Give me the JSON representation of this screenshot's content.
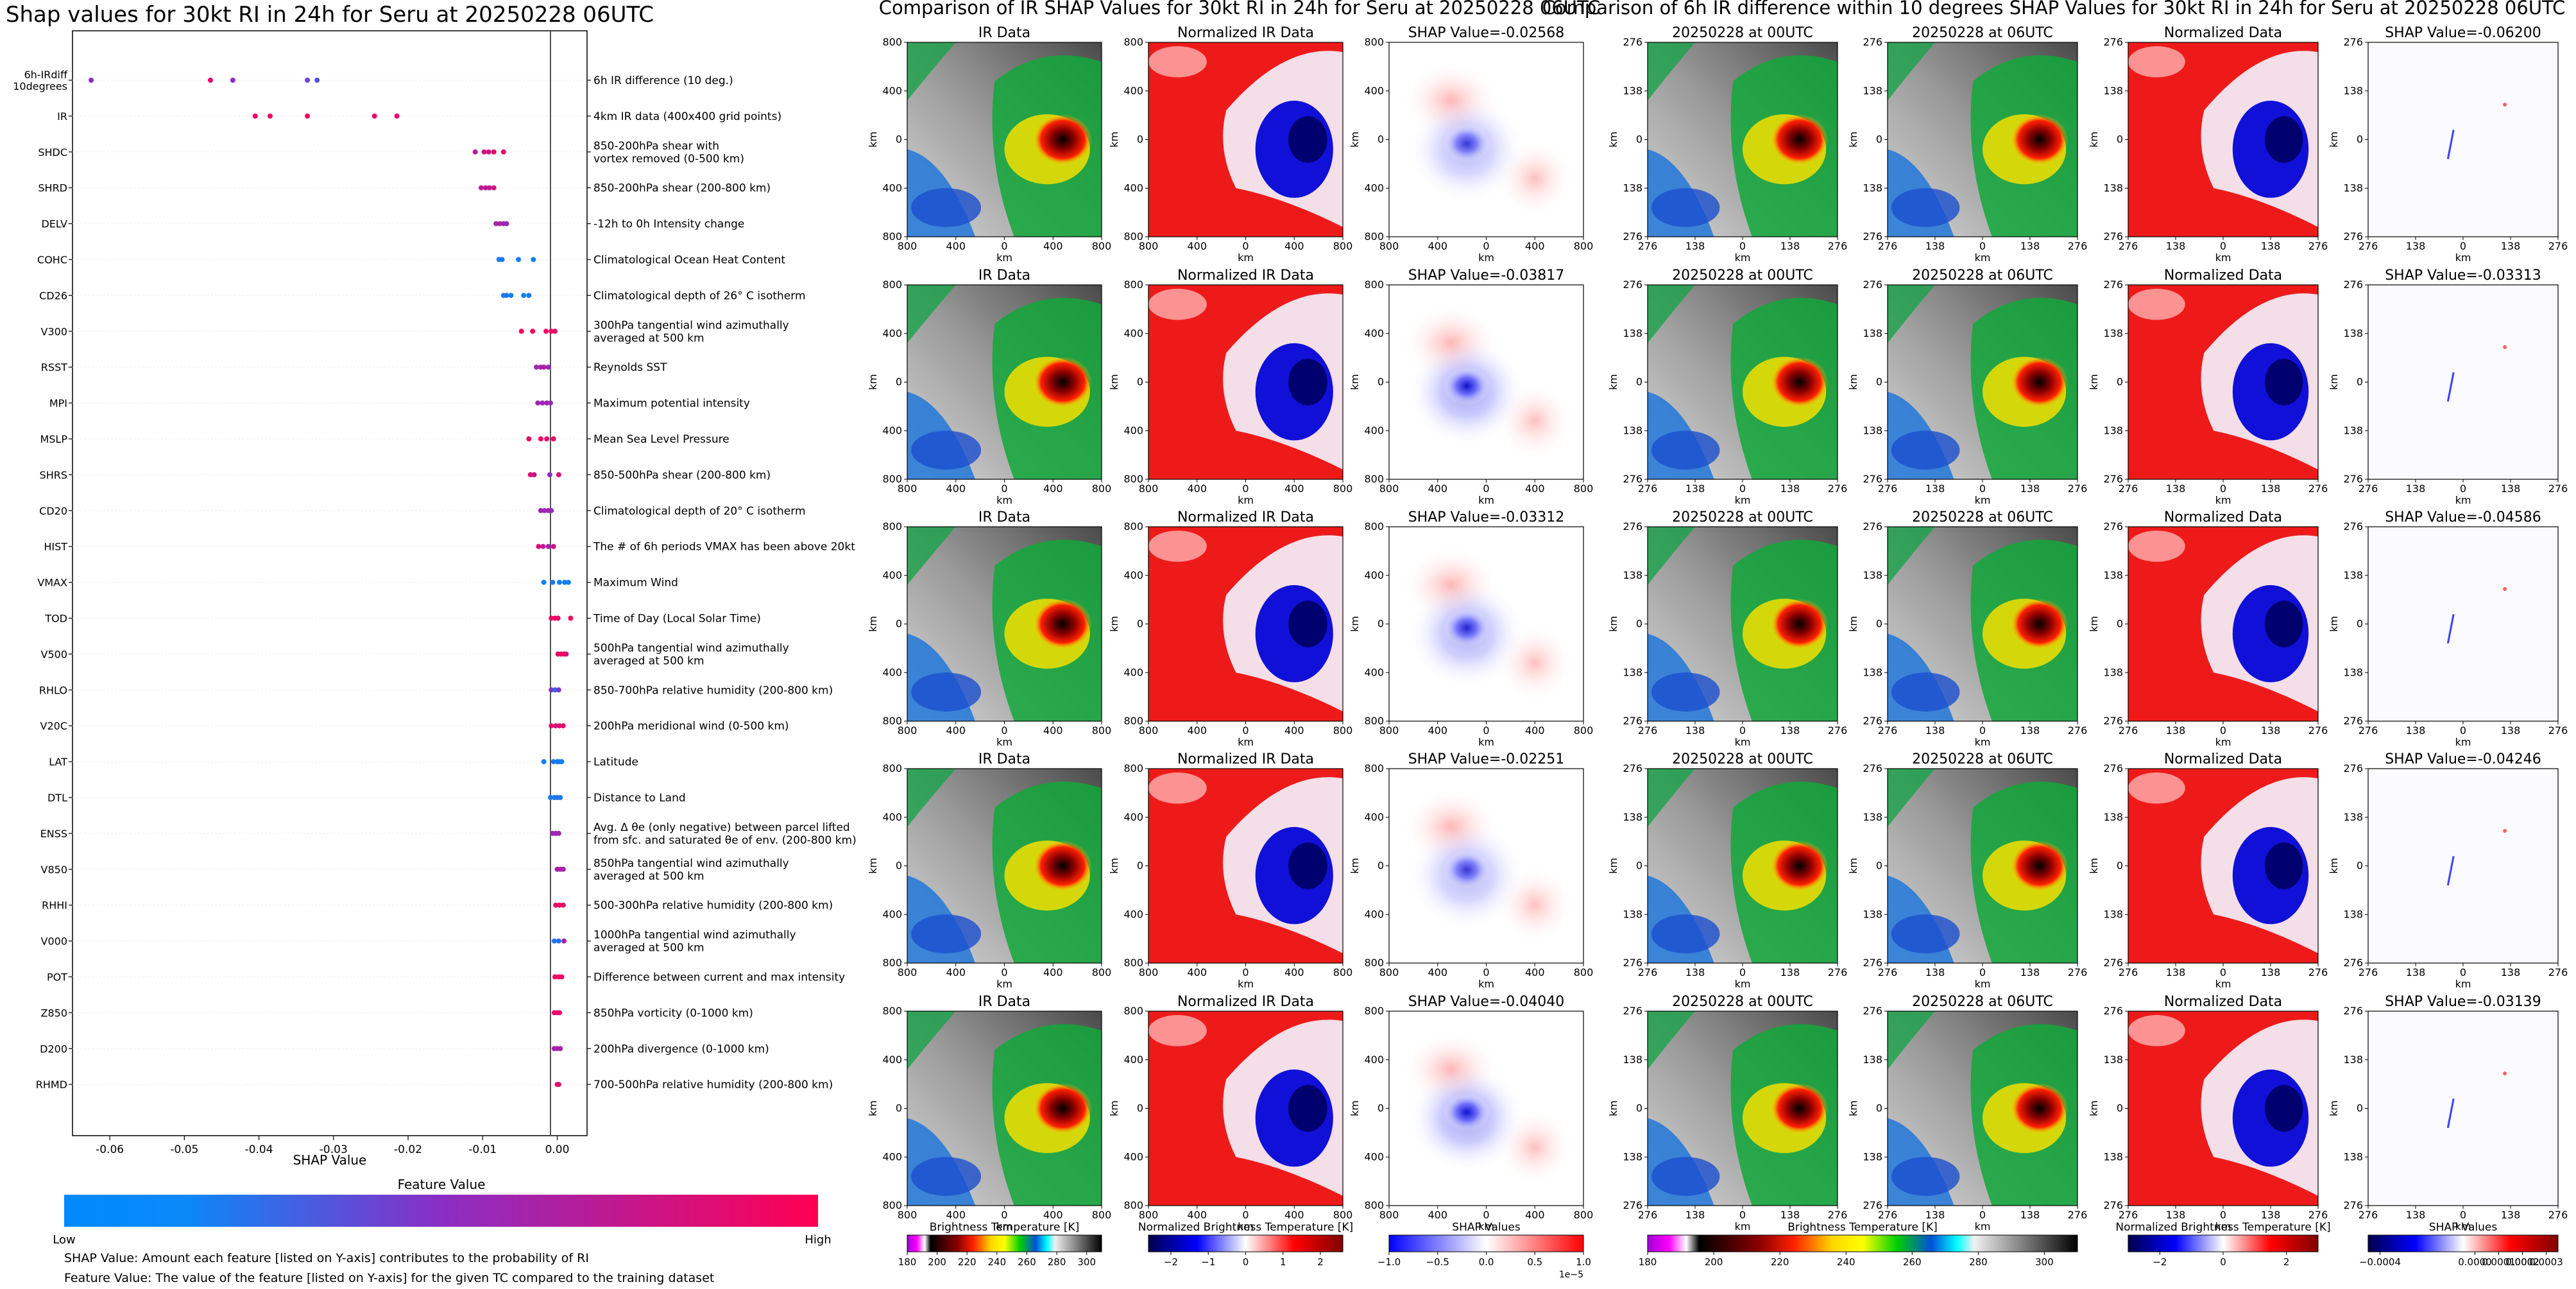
{
  "colors": {
    "low": "#008afd",
    "mid": "#8a2ec4",
    "high": "#ff0052",
    "gray_dark": "#1a1a1a",
    "gray_light": "#c9c9c9"
  },
  "left": {
    "title": "Shap values for 30kt RI in 24h for Seru at 20250228 06UTC",
    "xlabel": "SHAP Value",
    "xticks": [
      "-0.06",
      "-0.05",
      "-0.04",
      "-0.03",
      "-0.02",
      "-0.01",
      "0.00"
    ],
    "colorbar_title": "Feature Value",
    "colorbar_low": "Low",
    "colorbar_high": "High",
    "note1": "SHAP Value: Amount each feature [listed on Y-axis] contributes to the probability of RI",
    "note2": "Feature Value: The value of the feature [listed on Y-axis] for the given TC compared to the training dataset"
  },
  "chart_data": [
    {
      "type": "scatter",
      "title": "Shap values for 30kt RI in 24h for Seru at 20250228 06UTC",
      "xlabel": "SHAP Value",
      "ylabel": "",
      "xlim": [
        -0.065,
        0.004
      ],
      "features": [
        {
          "code": [
            "6h-IRdiff",
            "10degrees"
          ],
          "desc": [
            "6h IR difference (10 deg.)"
          ],
          "points": [
            [
              -0.0625,
              0.5
            ],
            [
              -0.0465,
              0.9
            ],
            [
              -0.0435,
              0.5
            ],
            [
              -0.0335,
              0.4
            ],
            [
              -0.0322,
              0.3
            ]
          ]
        },
        {
          "code": [
            "IR"
          ],
          "desc": [
            "4km IR data (400x400 grid points)"
          ],
          "points": [
            [
              -0.0405,
              0.9
            ],
            [
              -0.0385,
              0.95
            ],
            [
              -0.0335,
              0.95
            ],
            [
              -0.0245,
              0.9
            ],
            [
              -0.0215,
              0.9
            ]
          ]
        },
        {
          "code": [
            "SHDC"
          ],
          "desc": [
            "850-200hPa shear with",
            "vortex removed (0-500 km)"
          ],
          "points": [
            [
              -0.011,
              0.7
            ],
            [
              -0.0098,
              0.8
            ],
            [
              -0.0092,
              0.75
            ],
            [
              -0.0085,
              0.9
            ],
            [
              -0.0072,
              0.9
            ]
          ]
        },
        {
          "code": [
            "SHRD"
          ],
          "desc": [
            "850-200hPa shear (200-800 km)"
          ],
          "points": [
            [
              -0.0102,
              0.7
            ],
            [
              -0.0096,
              0.75
            ],
            [
              -0.0091,
              0.7
            ],
            [
              -0.0085,
              0.8
            ]
          ]
        },
        {
          "code": [
            "DELV"
          ],
          "desc": [
            "-12h to 0h Intensity change"
          ],
          "points": [
            [
              -0.0082,
              0.6
            ],
            [
              -0.0077,
              0.65
            ],
            [
              -0.0072,
              0.6
            ],
            [
              -0.0068,
              0.55
            ]
          ]
        },
        {
          "code": [
            "COHC"
          ],
          "desc": [
            "Climatological Ocean Heat Content"
          ],
          "points": [
            [
              -0.0078,
              0.05
            ],
            [
              -0.0074,
              0.1
            ],
            [
              -0.0052,
              0.05
            ],
            [
              -0.0032,
              0.05
            ]
          ]
        },
        {
          "code": [
            "CD26"
          ],
          "desc": [
            "Climatological depth of 26° C isotherm"
          ],
          "points": [
            [
              -0.0072,
              0.05
            ],
            [
              -0.0068,
              0.1
            ],
            [
              -0.0062,
              0.05
            ],
            [
              -0.0045,
              0.05
            ],
            [
              -0.0038,
              0.1
            ]
          ]
        },
        {
          "code": [
            "V300"
          ],
          "desc": [
            "300hPa tangential wind azimuthally",
            "averaged at 500 km"
          ],
          "points": [
            [
              -0.0048,
              0.95
            ],
            [
              -0.0033,
              0.95
            ],
            [
              -0.0015,
              0.9
            ],
            [
              -0.0008,
              0.95
            ],
            [
              -0.0003,
              0.85
            ]
          ]
        },
        {
          "code": [
            "RSST"
          ],
          "desc": [
            "Reynolds SST"
          ],
          "points": [
            [
              -0.0028,
              0.6
            ],
            [
              -0.0022,
              0.6
            ],
            [
              -0.0018,
              0.65
            ],
            [
              -0.0012,
              0.55
            ]
          ]
        },
        {
          "code": [
            "MPI"
          ],
          "desc": [
            "Maximum potential intensity"
          ],
          "points": [
            [
              -0.0026,
              0.6
            ],
            [
              -0.002,
              0.55
            ],
            [
              -0.0014,
              0.6
            ],
            [
              -0.0009,
              0.55
            ]
          ]
        },
        {
          "code": [
            "MSLP"
          ],
          "desc": [
            "Mean Sea Level Pressure"
          ],
          "points": [
            [
              -0.0038,
              0.9
            ],
            [
              -0.0022,
              0.95
            ],
            [
              -0.0014,
              0.9
            ],
            [
              -0.0005,
              0.9
            ]
          ]
        },
        {
          "code": [
            "SHRS"
          ],
          "desc": [
            "850-500hPa shear (200-800 km)"
          ],
          "points": [
            [
              -0.0036,
              0.85
            ],
            [
              -0.0031,
              0.8
            ],
            [
              -0.001,
              0.5
            ],
            [
              0.0002,
              0.85
            ]
          ]
        },
        {
          "code": [
            "CD20"
          ],
          "desc": [
            "Climatological depth of 20° C isotherm"
          ],
          "points": [
            [
              -0.0022,
              0.6
            ],
            [
              -0.0017,
              0.55
            ],
            [
              -0.0012,
              0.6
            ],
            [
              -0.0008,
              0.55
            ]
          ]
        },
        {
          "code": [
            "HIST"
          ],
          "desc": [
            "The # of 6h periods VMAX has been above 20kt"
          ],
          "points": [
            [
              -0.0025,
              0.85
            ],
            [
              -0.0019,
              0.7
            ],
            [
              -0.0012,
              0.6
            ],
            [
              -0.0005,
              0.8
            ]
          ]
        },
        {
          "code": [
            "VMAX"
          ],
          "desc": [
            "Maximum Wind"
          ],
          "points": [
            [
              -0.0018,
              0.05
            ],
            [
              -0.0006,
              0.1
            ],
            [
              0.0003,
              0.05
            ],
            [
              0.001,
              0.1
            ],
            [
              0.0015,
              0.05
            ]
          ]
        },
        {
          "code": [
            "TOD"
          ],
          "desc": [
            "Time of Day (Local Solar Time)"
          ],
          "points": [
            [
              -0.0008,
              0.9
            ],
            [
              -0.0003,
              0.95
            ],
            [
              0.0001,
              0.9
            ],
            [
              0.0018,
              0.95
            ]
          ]
        },
        {
          "code": [
            "V500"
          ],
          "desc": [
            "500hPa tangential wind azimuthally",
            "averaged at 500 km"
          ],
          "points": [
            [
              0.0001,
              0.9
            ],
            [
              0.0005,
              0.95
            ],
            [
              0.0009,
              0.9
            ],
            [
              0.0012,
              0.85
            ]
          ]
        },
        {
          "code": [
            "RHLO"
          ],
          "desc": [
            "850-700hPa relative humidity (200-800 km)"
          ],
          "points": [
            [
              -0.0008,
              0.5
            ],
            [
              -0.0003,
              0.2
            ],
            [
              0.0002,
              0.45
            ]
          ]
        },
        {
          "code": [
            "V20C"
          ],
          "desc": [
            "200hPa meridional wind (0-500 km)"
          ],
          "points": [
            [
              -0.0008,
              0.9
            ],
            [
              -0.0002,
              0.8
            ],
            [
              0.0003,
              0.85
            ],
            [
              0.0008,
              0.9
            ]
          ]
        },
        {
          "code": [
            "LAT"
          ],
          "desc": [
            "Latitude"
          ],
          "points": [
            [
              -0.0018,
              0.05
            ],
            [
              -0.0005,
              0.1
            ],
            [
              0,
              0.05
            ],
            [
              0.0003,
              0.1
            ],
            [
              0.0006,
              0.05
            ]
          ]
        },
        {
          "code": [
            "DTL"
          ],
          "desc": [
            "Distance to Land"
          ],
          "points": [
            [
              -0.0009,
              0.1
            ],
            [
              -0.0004,
              0.1
            ],
            [
              0,
              0.15
            ],
            [
              0.0004,
              0.1
            ]
          ]
        },
        {
          "code": [
            "ENSS"
          ],
          "desc": [
            "Avg. Δ θe (only negative) between parcel lifted",
            "from sfc. and saturated θe of env. (200-800 km)"
          ],
          "points": [
            [
              -0.0006,
              0.6
            ],
            [
              -0.0002,
              0.55
            ],
            [
              0.0002,
              0.6
            ]
          ]
        },
        {
          "code": [
            "V850"
          ],
          "desc": [
            "850hPa tangential wind azimuthally",
            "averaged at 500 km"
          ],
          "points": [
            [
              0,
              0.6
            ],
            [
              0.0004,
              0.65
            ],
            [
              0.0008,
              0.6
            ]
          ]
        },
        {
          "code": [
            "RHHI"
          ],
          "desc": [
            "500-300hPa relative humidity (200-800 km)"
          ],
          "points": [
            [
              -0.0002,
              0.9
            ],
            [
              0.0003,
              0.95
            ],
            [
              0.0008,
              0.9
            ]
          ]
        },
        {
          "code": [
            "V000"
          ],
          "desc": [
            "1000hPa tangential wind azimuthally",
            "averaged at 500 km"
          ],
          "points": [
            [
              -0.0004,
              0.1
            ],
            [
              0.0002,
              0.15
            ],
            [
              0.0009,
              0.6
            ]
          ]
        },
        {
          "code": [
            "POT"
          ],
          "desc": [
            "Difference between current and max intensity"
          ],
          "points": [
            [
              -0.0003,
              0.9
            ],
            [
              0.0002,
              0.95
            ],
            [
              0.0006,
              0.9
            ]
          ]
        },
        {
          "code": [
            "Z850"
          ],
          "desc": [
            "850hPa vorticity (0-1000 km)"
          ],
          "points": [
            [
              -0.0004,
              0.9
            ],
            [
              0,
              0.85
            ],
            [
              0.0003,
              0.9
            ]
          ]
        },
        {
          "code": [
            "D200"
          ],
          "desc": [
            "200hPa divergence (0-1000 km)"
          ],
          "points": [
            [
              -0.0004,
              0.6
            ],
            [
              0,
              0.65
            ],
            [
              0.0004,
              0.6
            ]
          ]
        },
        {
          "code": [
            "RHMD"
          ],
          "desc": [
            "700-500hPa relative humidity (200-800 km)"
          ],
          "points": [
            [
              0,
              0.85
            ],
            [
              0.0002,
              0.9
            ]
          ]
        }
      ]
    },
    {
      "type": "heatmap",
      "title": "Comparison of IR SHAP Values for 30kt RI in 24h for Seru at 20250228 06UTC",
      "columns": [
        "IR Data",
        "Normalized IR Data",
        "SHAP"
      ],
      "shap_values": [
        "SHAP Value=-0.02568",
        "SHAP Value=-0.03817",
        "SHAP Value=-0.03312",
        "SHAP Value=-0.02251",
        "SHAP Value=-0.04040"
      ],
      "xlabel": "km",
      "ylabel": "km",
      "ticks": [
        "800",
        "400",
        "0",
        "400",
        "800"
      ],
      "colorbars": [
        {
          "label": "Brightness Temperature [K]",
          "ticks": [
            "180",
            "200",
            "220",
            "240",
            "260",
            "280",
            "300"
          ],
          "range": [
            180,
            310
          ]
        },
        {
          "label": "Normalized Brightness Temperature [K]",
          "ticks": [
            "−2",
            "−1",
            "0",
            "1",
            "2"
          ],
          "range": [
            -2.6,
            2.6
          ]
        },
        {
          "label": "SHAP Values",
          "ticks": [
            "−1.0",
            "−0.5",
            "0.0",
            "0.5",
            "1.0"
          ],
          "range": [
            -1.0,
            1.0
          ],
          "offset": "1e−5"
        }
      ]
    },
    {
      "type": "heatmap",
      "title": "Comparison of 6h IR difference within 10 degrees SHAP Values for 30kt RI in 24h for Seru at 20250228 06UTC",
      "columns": [
        "20250228 at 00UTC",
        "20250228 at 06UTC",
        "Normalized Data",
        "SHAP"
      ],
      "shap_values": [
        "SHAP Value=-0.06200",
        "SHAP Value=-0.03313",
        "SHAP Value=-0.04586",
        "SHAP Value=-0.04246",
        "SHAP Value=-0.03139"
      ],
      "xlabel": "km",
      "ylabel": "km",
      "ticks": [
        "276",
        "138",
        "0",
        "138",
        "276"
      ],
      "colorbars": [
        {
          "label": "Brightness Temperature [K]",
          "ticks": [
            "180",
            "200",
            "220",
            "240",
            "260",
            "280",
            "300"
          ],
          "range": [
            180,
            310
          ]
        },
        {
          "label": "Normalized Brightness Temperature [K]",
          "ticks": [
            "−2",
            "0",
            "2"
          ],
          "range": [
            -3.0,
            3.0
          ]
        },
        {
          "label": "SHAP Values",
          "ticks": [
            "−0.0004",
            "0.0002",
            "0.0000",
            "0.0001",
            "0.0002",
            "0.0003"
          ],
          "range": [
            -0.00045,
            0.00035
          ]
        }
      ]
    }
  ]
}
